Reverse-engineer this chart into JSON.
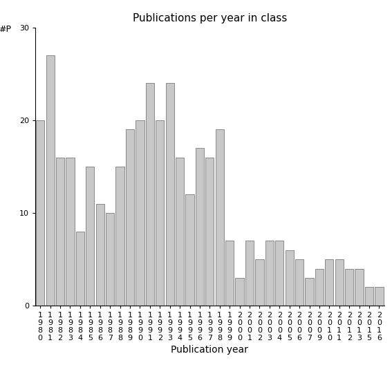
{
  "title": "Publications per year in class",
  "xlabel": "Publication year",
  "ylabel": "#P",
  "ylim": [
    0,
    30
  ],
  "yticks": [
    0,
    10,
    20,
    30
  ],
  "bar_color": "#c8c8c8",
  "bar_edgecolor": "#666666",
  "categories": [
    "1980",
    "1981",
    "1982",
    "1983",
    "1984",
    "1985",
    "1986",
    "1987",
    "1988",
    "1989",
    "1990",
    "1991",
    "1992",
    "1993",
    "1994",
    "1995",
    "1996",
    "1997",
    "1998",
    "1999",
    "2000",
    "2001",
    "2002",
    "2003",
    "2004",
    "2005",
    "2006",
    "2007",
    "2009",
    "2010",
    "2011",
    "2012",
    "2013",
    "2015",
    "2016"
  ],
  "values": [
    20,
    27,
    16,
    16,
    8,
    15,
    11,
    10,
    15,
    19,
    20,
    24,
    20,
    24,
    16,
    12,
    17,
    16,
    19,
    7,
    3,
    7,
    5,
    7,
    7,
    6,
    5,
    3,
    4,
    5,
    5,
    4,
    4,
    2,
    2
  ],
  "background_color": "#ffffff",
  "title_fontsize": 11,
  "label_fontsize": 10,
  "tick_fontsize": 8,
  "ylabel_fontsize": 9
}
